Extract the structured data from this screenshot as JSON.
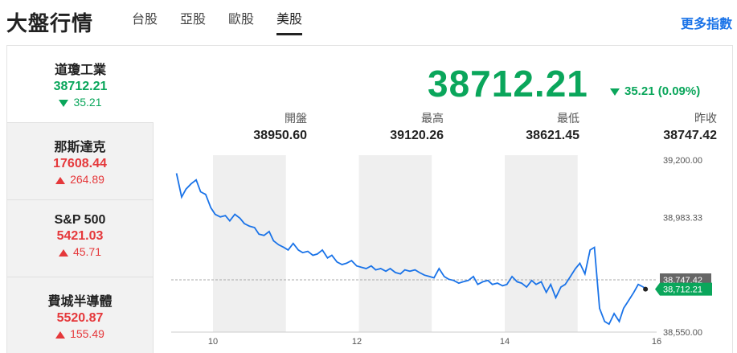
{
  "app": {
    "title": "大盤行情",
    "more_link": "更多指數"
  },
  "tabs": [
    {
      "label": "台股",
      "active": false
    },
    {
      "label": "亞股",
      "active": false
    },
    {
      "label": "歐股",
      "active": false
    },
    {
      "label": "美股",
      "active": true
    }
  ],
  "sidebar": {
    "items": [
      {
        "name": "道瓊工業",
        "value": "38712.21",
        "change": "35.21",
        "direction": "down",
        "active": true
      },
      {
        "name": "那斯達克",
        "value": "17608.44",
        "change": "264.89",
        "direction": "up",
        "active": false
      },
      {
        "name": "S&P 500",
        "value": "5421.03",
        "change": "45.71",
        "direction": "up",
        "active": false
      },
      {
        "name": "費城半導體",
        "value": "5520.87",
        "change": "155.49",
        "direction": "up",
        "active": false
      }
    ]
  },
  "quote": {
    "price": "38712.21",
    "change": "35.21 (0.09%)",
    "direction": "down",
    "stats": [
      {
        "label": "開盤",
        "value": "38950.60"
      },
      {
        "label": "最高",
        "value": "39120.26"
      },
      {
        "label": "最低",
        "value": "38621.45"
      },
      {
        "label": "昨收",
        "value": "38747.42"
      }
    ]
  },
  "colors": {
    "down": "#0aa65b",
    "up": "#e5383b",
    "line": "#1a73e8",
    "link": "#1a73e8"
  },
  "chart_data": {
    "type": "line",
    "x_ticks": [
      "10",
      "12",
      "14",
      "16"
    ],
    "x_range": [
      9.5,
      16.0
    ],
    "y_ticks": [
      "39,200.00",
      "38,983.33",
      "38,550.00"
    ],
    "ylim": [
      38550,
      39200
    ],
    "prev_close": {
      "label": "38,747.42",
      "value": 38747.42
    },
    "last": {
      "label": "38,712.21",
      "value": 38712.21
    },
    "series": [
      {
        "x": [
          9.5,
          9.57,
          9.63,
          9.7,
          9.77,
          9.83,
          9.9,
          9.97,
          10.03,
          10.1,
          10.17,
          10.23,
          10.3,
          10.37,
          10.43,
          10.5,
          10.57,
          10.63,
          10.7,
          10.77,
          10.83,
          10.9,
          10.97,
          11.03,
          11.1,
          11.17,
          11.23,
          11.3,
          11.37,
          11.43,
          11.5,
          11.57,
          11.63,
          11.7,
          11.77,
          11.83,
          11.9,
          11.97,
          12.03,
          12.1,
          12.17,
          12.23,
          12.3,
          12.37,
          12.43,
          12.5,
          12.57,
          12.63,
          12.7,
          12.77,
          12.83,
          12.9,
          12.97,
          13.03,
          13.1,
          13.17,
          13.23,
          13.3,
          13.37,
          13.43,
          13.5,
          13.57,
          13.63,
          13.7,
          13.77,
          13.83,
          13.9,
          13.97,
          14.03,
          14.1,
          14.17,
          14.23,
          14.3,
          14.37,
          14.43,
          14.5,
          14.57,
          14.63,
          14.7,
          14.77,
          14.83,
          14.9,
          14.97,
          15.03,
          15.1,
          15.17,
          15.23,
          15.3,
          15.37,
          15.43,
          15.5,
          15.57,
          15.63,
          15.7,
          15.77,
          15.83,
          15.9,
          15.93
        ],
        "y": [
          39150,
          39060,
          39090,
          39110,
          39125,
          39080,
          39070,
          39020,
          38995,
          38985,
          38990,
          38970,
          38995,
          38980,
          38960,
          38950,
          38945,
          38920,
          38915,
          38930,
          38895,
          38880,
          38870,
          38860,
          38885,
          38860,
          38850,
          38855,
          38840,
          38845,
          38860,
          38830,
          38840,
          38815,
          38805,
          38810,
          38820,
          38800,
          38795,
          38790,
          38800,
          38785,
          38790,
          38780,
          38790,
          38775,
          38770,
          38785,
          38780,
          38785,
          38775,
          38765,
          38760,
          38755,
          38790,
          38760,
          38750,
          38745,
          38735,
          38740,
          38745,
          38760,
          38730,
          38740,
          38745,
          38730,
          38735,
          38725,
          38730,
          38760,
          38740,
          38735,
          38720,
          38745,
          38730,
          38740,
          38700,
          38730,
          38680,
          38720,
          38730,
          38760,
          38790,
          38810,
          38770,
          38860,
          38870,
          38640,
          38590,
          38580,
          38620,
          38590,
          38640,
          38670,
          38700,
          38730,
          38720,
          38712
        ]
      }
    ],
    "shaded_ranges": [
      [
        10.0,
        11.0
      ],
      [
        12.0,
        13.0
      ],
      [
        14.0,
        15.0
      ]
    ]
  }
}
